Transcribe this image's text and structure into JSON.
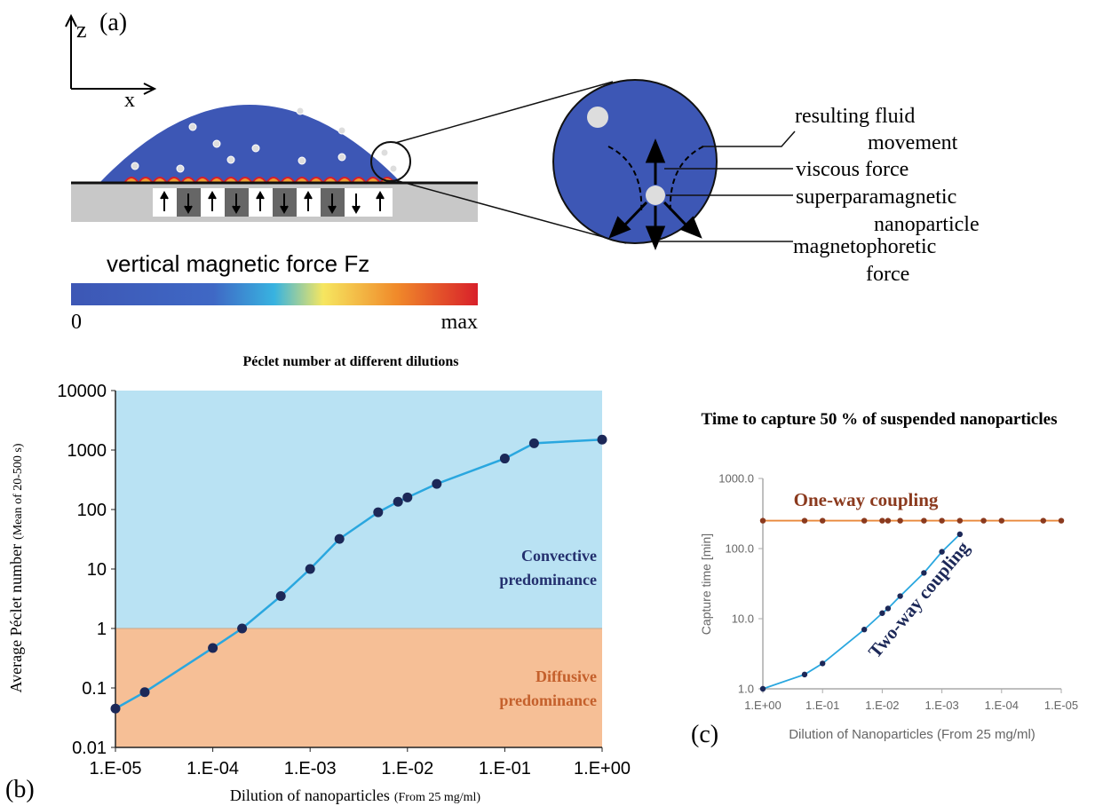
{
  "figure": {
    "panel_a": {
      "label": "(a)",
      "axes": [
        "z",
        "x"
      ],
      "callouts": [
        "resulting fluid",
        "movement",
        "viscous force",
        "superparamagnetic",
        "nanoparticle",
        "magnetophoretic",
        "force"
      ],
      "colorbar": {
        "title": "vertical magnetic force Fz",
        "min": "0",
        "max": "max"
      }
    },
    "panel_b_label": "(b)",
    "panel_c_label": "(c)"
  },
  "chart_data": [
    {
      "type": "line",
      "title": "Péclet number at different dilutions",
      "xlabel": "Dilution of nanoparticles",
      "xlabel_note": "(From 25 mg/ml)",
      "ylabel": "Average Péclet number",
      "ylabel_note": "(Mean of 20-500 s)",
      "log_x": true,
      "log_y": true,
      "xlim": [
        1e-05,
        1
      ],
      "xticks": [
        {
          "value": 1e-05,
          "label": "1.E-05"
        },
        {
          "value": 0.0001,
          "label": "1.E-04"
        },
        {
          "value": 0.001,
          "label": "1.E-03"
        },
        {
          "value": 0.01,
          "label": "1.E-02"
        },
        {
          "value": 0.1,
          "label": "1.E-01"
        },
        {
          "value": 1,
          "label": "1.E+00"
        }
      ],
      "ylim": [
        0.01,
        10000
      ],
      "yticks": [
        0.01,
        0.1,
        1,
        10,
        100,
        1000,
        10000
      ],
      "regions": {
        "threshold": 1,
        "above": "#b9e2f3",
        "below": "#f6bf96"
      },
      "annotations": [
        {
          "lines": [
            "Convective",
            "predominance"
          ],
          "color": "#24306e"
        },
        {
          "lines": [
            "Diffusive",
            "predominance"
          ],
          "color": "#c4602c"
        }
      ],
      "series": [
        {
          "color": "#2aa7df",
          "marker_color": "#1c2858",
          "x": [
            1e-05,
            2e-05,
            0.0001,
            0.0002,
            0.0005,
            0.001,
            0.002,
            0.005,
            0.008,
            0.01,
            0.02,
            0.1,
            0.2,
            1
          ],
          "values": [
            0.045,
            0.085,
            0.47,
            1.0,
            3.5,
            10,
            32,
            90,
            135,
            160,
            270,
            720,
            1300,
            1500
          ]
        }
      ]
    },
    {
      "type": "line",
      "title": "Time to capture 50 % of suspended nanoparticles",
      "xlabel": "Dilution of Nanoparticles (From 25 mg/ml)",
      "ylabel": "Capture time [min]",
      "log_x": true,
      "log_y": true,
      "xlim": [
        1,
        1e-05
      ],
      "xticks": [
        {
          "value": 1,
          "label": "1.E+00"
        },
        {
          "value": 0.1,
          "label": "1.E-01"
        },
        {
          "value": 0.01,
          "label": "1.E-02"
        },
        {
          "value": 0.001,
          "label": "1.E-03"
        },
        {
          "value": 0.0001,
          "label": "1.E-04"
        },
        {
          "value": 1e-05,
          "label": "1.E-05"
        }
      ],
      "ylim": [
        1,
        1000
      ],
      "yticks": [
        {
          "value": 1,
          "label": "1.0"
        },
        {
          "value": 10,
          "label": "10.0"
        },
        {
          "value": 100,
          "label": "100.0"
        },
        {
          "value": 1000,
          "label": "1000.0"
        }
      ],
      "series": [
        {
          "name": "One-way coupling",
          "color": "#e8883a",
          "marker_color": "#8b3a1e",
          "x": [
            1,
            0.2,
            0.1,
            0.02,
            0.01,
            0.008,
            0.005,
            0.002,
            0.001,
            0.0005,
            0.0002,
            0.0001,
            2e-05,
            1e-05
          ],
          "values": [
            250,
            250,
            250,
            250,
            250,
            250,
            250,
            250,
            250,
            250,
            250,
            250,
            250,
            250
          ]
        },
        {
          "name": "Two-way coupling",
          "color": "#2aa7df",
          "marker_color": "#1c2858",
          "x": [
            1,
            0.2,
            0.1,
            0.02,
            0.01,
            0.008,
            0.005,
            0.002,
            0.001,
            0.0005
          ],
          "values": [
            1.0,
            1.6,
            2.3,
            7,
            12,
            14,
            21,
            45,
            90,
            160
          ]
        }
      ]
    }
  ]
}
